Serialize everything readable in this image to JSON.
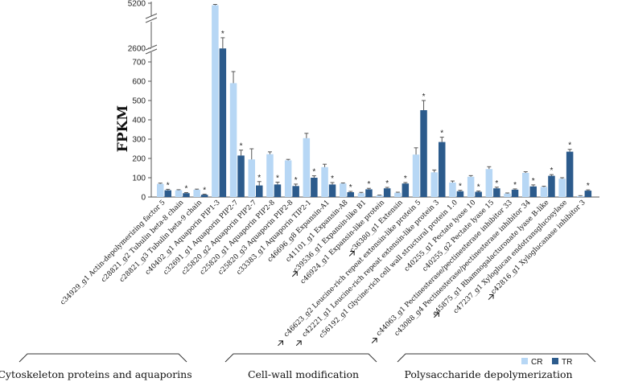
{
  "chart_data": {
    "type": "bar",
    "ylabel": "FPKM",
    "y_axis_break": true,
    "y_segments": [
      {
        "range": [
          0,
          700
        ],
        "ticks": [
          0,
          100,
          200,
          300,
          400,
          500,
          600,
          700
        ]
      },
      {
        "range": [
          2600,
          2600
        ],
        "ticks": [
          2600
        ]
      },
      {
        "range": [
          5200,
          5200
        ],
        "ticks": [
          5200
        ]
      }
    ],
    "categories": [
      "c34929_g1  Actin-depolymerizing factor 5",
      "c28821_g2  Tubulin beta-8 chain",
      "c28821_g3  Tubulin beta-9 chain",
      "c40402_g1  Aquaporin PIP1-3",
      "c32691_g1  Aquaporin PIP2-7",
      "c25820_g2  Aquaporin PIP2-7",
      "c25820_g1  Aquaporin PIP2-8",
      "c25820_g3  Aquaporin PIP2-8",
      "c33383_g1  Aquaporin TIP2-1",
      "c46696_g8  Expansin-A1",
      "c41101_g1  Expansin-A8",
      "c39536_g1  Expansin-like B1",
      "c46924_g1  Expansin-like protein",
      "c36380_g1  Extensin",
      "c46623_g2  Leucine-rich repeat extensin-like protein 5",
      "c42221_g1  Leucine-rich repeat extensin-like protein 3",
      "c56192_g1  Glycine-rich cell wall structural protein 1.0",
      "c40255_g1  Pectate lyase 10",
      "c40255_g2  Pectate lyase 15",
      "c44063_g1  Pectinesterase/pectinesterase inhibitor 33",
      "c43088_g4  Pectinesterase/pectinesterase inhibitor 34",
      "c45875_g1  Rhamnogalacturonate lyase B-like",
      "c47237_g1  Xyloglucan endotransglucosylase",
      "c42816_g1  Xyloglucanase inhibitor 3"
    ],
    "arrow_marked_categories": [
      "c39536_g1  Expansin-like B1",
      "c36380_g1  Extensin",
      "c46623_g2  Leucine-rich repeat extensin-like protein 5",
      "c42221_g1  Leucine-rich repeat extensin-like protein 3",
      "c44063_g1  Pectinesterase/pectinesterase inhibitor 33",
      "c45875_g1  Rhamnogalacturonate lyase B-like",
      "c42816_g1  Xyloglucanase inhibitor 3"
    ],
    "series": [
      {
        "name": "CR",
        "color": "#b7d7f5",
        "values": [
          68,
          35,
          38,
          5050,
          590,
          195,
          222,
          190,
          305,
          155,
          70,
          20,
          8,
          22,
          220,
          128,
          75,
          105,
          145,
          18,
          125,
          52,
          95,
          5
        ],
        "errors": [
          4,
          3,
          3,
          60,
          60,
          55,
          12,
          5,
          25,
          15,
          3,
          4,
          2,
          3,
          35,
          12,
          8,
          6,
          12,
          3,
          6,
          4,
          5,
          2
        ]
      },
      {
        "name": "TR",
        "color": "#2c5b8c",
        "values": [
          35,
          20,
          12,
          2575,
          215,
          60,
          65,
          57,
          100,
          65,
          25,
          40,
          45,
          70,
          450,
          285,
          30,
          27,
          45,
          38,
          55,
          110,
          235,
          33
        ],
        "errors": [
          5,
          3,
          3,
          30,
          28,
          20,
          12,
          10,
          10,
          10,
          4,
          5,
          5,
          5,
          50,
          25,
          5,
          4,
          6,
          4,
          8,
          6,
          12,
          4
        ]
      }
    ],
    "significance": "*",
    "significant_categories": [
      "c34929_g1  Actin-depolymerizing factor 5",
      "c28821_g2  Tubulin beta-8 chain",
      "c28821_g3  Tubulin beta-9 chain",
      "c40402_g1  Aquaporin PIP1-3",
      "c32691_g1  Aquaporin PIP2-7",
      "c25820_g2  Aquaporin PIP2-7",
      "c25820_g1  Aquaporin PIP2-8",
      "c25820_g3  Aquaporin PIP2-8",
      "c33383_g1  Aquaporin TIP2-1",
      "c46696_g8  Expansin-A1",
      "c41101_g1  Expansin-A8",
      "c39536_g1  Expansin-like B1",
      "c46924_g1  Expansin-like protein",
      "c36380_g1  Extensin",
      "c46623_g2  Leucine-rich repeat extensin-like protein 5",
      "c42221_g1  Leucine-rich repeat extensin-like protein 3",
      "c56192_g1  Glycine-rich cell wall structural protein 1.0",
      "c40255_g1  Pectate lyase 10",
      "c40255_g2  Pectate lyase 15",
      "c44063_g1  Pectinesterase/pectinesterase inhibitor 33",
      "c43088_g4  Pectinesterase/pectinesterase inhibitor 34",
      "c45875_g1  Rhamnogalacturonate lyase B-like",
      "c47237_g1  Xyloglucan endotransglucosylase",
      "c42816_g1  Xyloglucanase inhibitor 3"
    ],
    "groups": [
      {
        "label": "Cytoskeleton proteins and aquaporins",
        "categories": [
          0,
          8
        ]
      },
      {
        "label": "Cell-wall modification",
        "categories": [
          9,
          16
        ]
      },
      {
        "label": "Polysaccharide depolymerization",
        "categories": [
          17,
          23
        ]
      }
    ],
    "legend": {
      "placement": "bottom-right",
      "entries": [
        "CR",
        "TR"
      ]
    }
  }
}
